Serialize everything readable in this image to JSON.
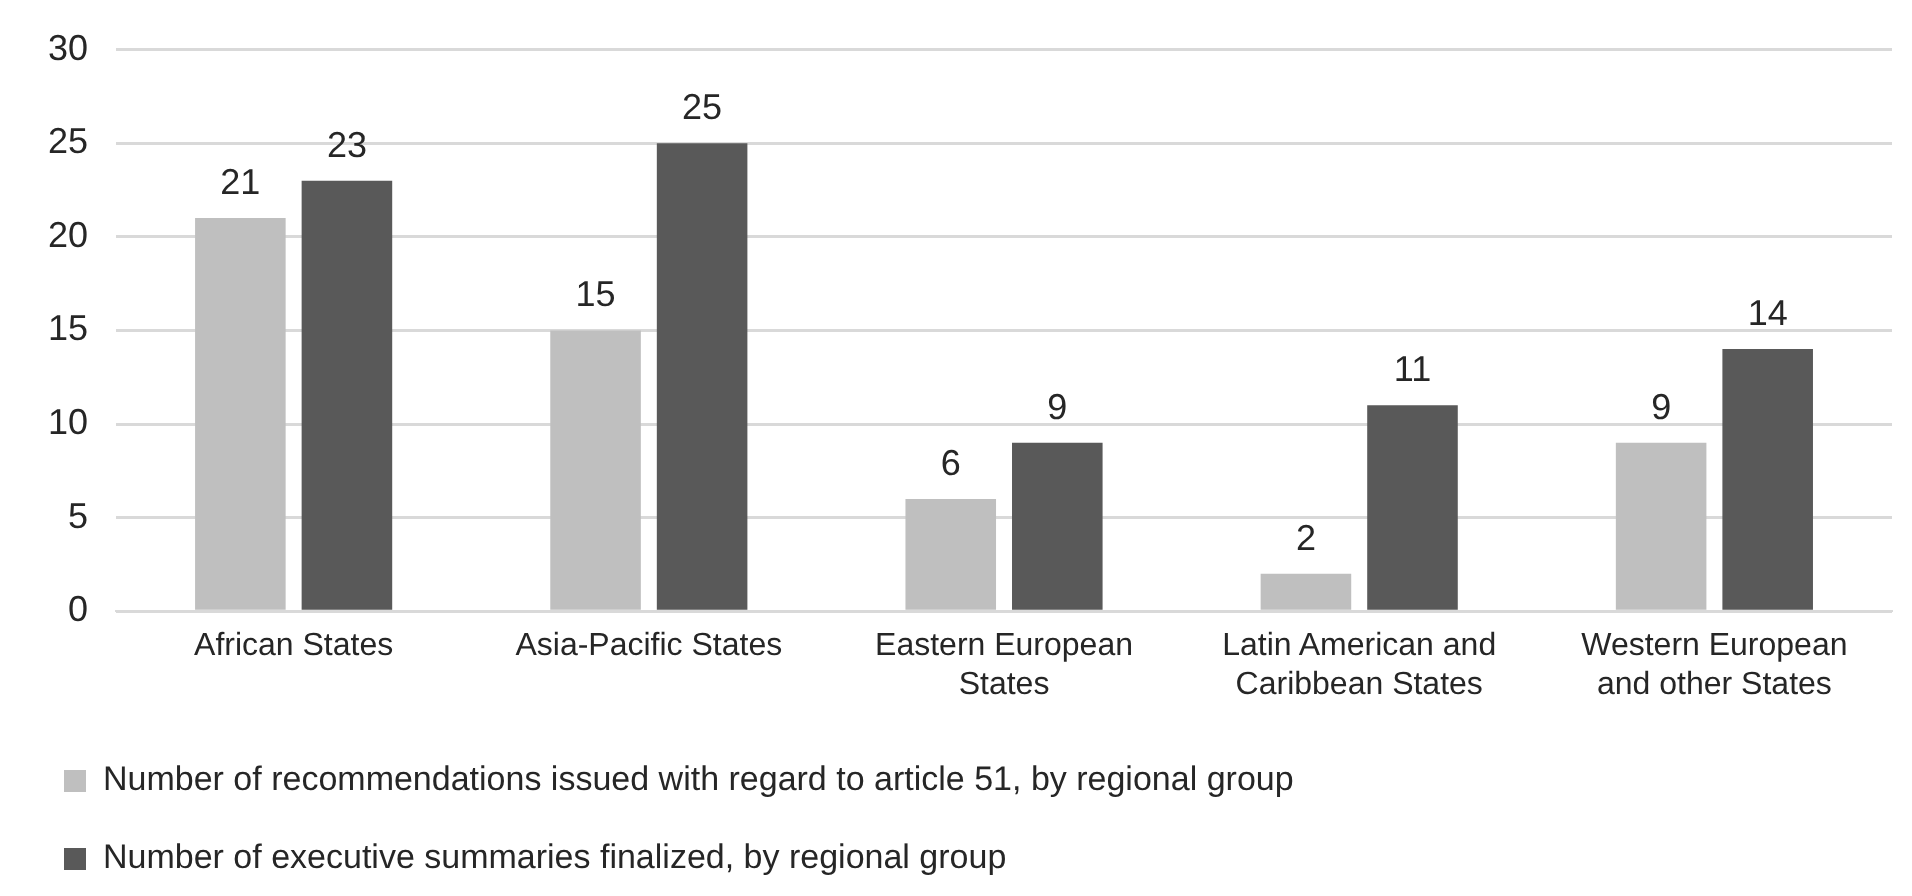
{
  "chart_data": {
    "type": "bar",
    "categories": [
      "African States",
      "Asia-Pacific States",
      "Eastern European States",
      "Latin American and Caribbean States",
      "Western European and other States"
    ],
    "series": [
      {
        "name": "Number of recommendations issued with regard to article 51, by regional group",
        "color": "#bfbfbf",
        "values": [
          21,
          15,
          6,
          2,
          9
        ]
      },
      {
        "name": "Number of executive summaries finalized, by regional group",
        "color": "#595959",
        "values": [
          23,
          25,
          9,
          11,
          14
        ]
      }
    ],
    "ylim": [
      0,
      30
    ],
    "yticks": [
      0,
      5,
      10,
      15,
      20,
      25,
      30
    ],
    "grid": "y",
    "legend": "bottom",
    "data_labels": true
  }
}
